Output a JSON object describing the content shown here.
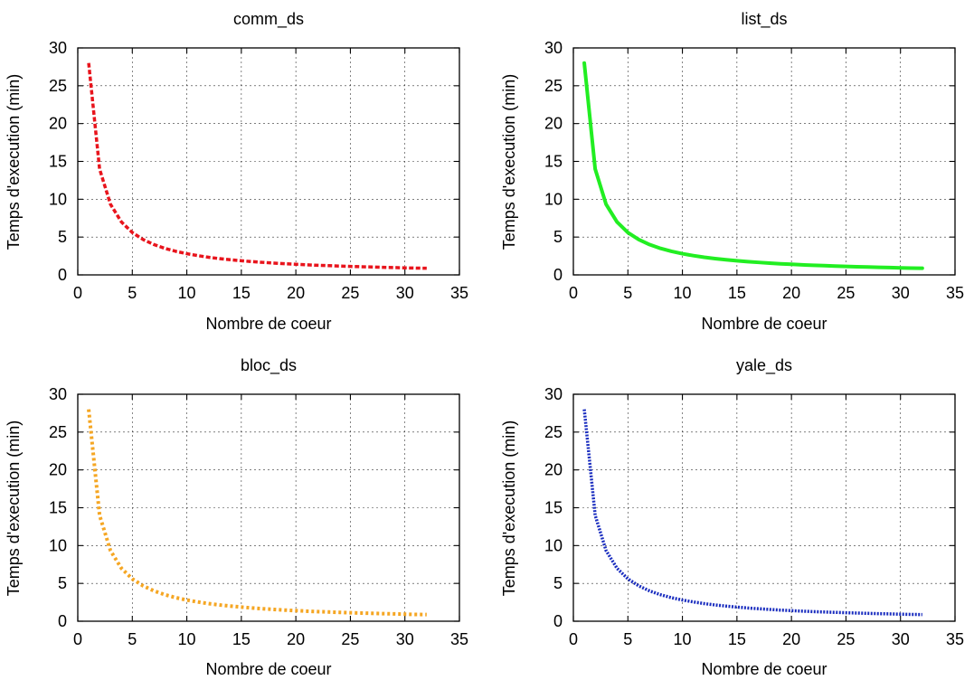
{
  "chart_data": [
    {
      "type": "line",
      "title": "comm_ds",
      "xlabel": "Nombre de coeur",
      "ylabel": "Temps d'execution (min)",
      "xlim": [
        0,
        35
      ],
      "ylim": [
        0,
        30
      ],
      "xticks": [
        0,
        5,
        10,
        15,
        20,
        25,
        30,
        35
      ],
      "yticks": [
        0,
        5,
        10,
        15,
        20,
        25,
        30
      ],
      "grid": true,
      "color": "#e8141c",
      "line_style": "dashed",
      "series": [
        {
          "x": [
            1,
            2,
            3,
            4,
            5,
            6,
            7,
            8,
            9,
            10,
            11,
            12,
            13,
            14,
            15,
            16,
            17,
            18,
            19,
            20,
            21,
            22,
            23,
            24,
            25,
            26,
            27,
            28,
            29,
            30,
            31,
            32
          ],
          "y": [
            28,
            14,
            9.33,
            7,
            5.6,
            4.67,
            4,
            3.5,
            3.11,
            2.8,
            2.55,
            2.33,
            2.15,
            2,
            1.87,
            1.75,
            1.65,
            1.56,
            1.47,
            1.4,
            1.33,
            1.27,
            1.22,
            1.17,
            1.12,
            1.08,
            1.04,
            1,
            0.97,
            0.93,
            0.9,
            0.88
          ]
        }
      ]
    },
    {
      "type": "line",
      "title": "list_ds",
      "xlabel": "Nombre de coeur",
      "ylabel": "Temps d'execution (min)",
      "xlim": [
        0,
        35
      ],
      "ylim": [
        0,
        30
      ],
      "xticks": [
        0,
        5,
        10,
        15,
        20,
        25,
        30,
        35
      ],
      "yticks": [
        0,
        5,
        10,
        15,
        20,
        25,
        30
      ],
      "grid": true,
      "color": "#22ee22",
      "line_style": "solid",
      "series": [
        {
          "x": [
            1,
            2,
            3,
            4,
            5,
            6,
            7,
            8,
            9,
            10,
            11,
            12,
            13,
            14,
            15,
            16,
            17,
            18,
            19,
            20,
            21,
            22,
            23,
            24,
            25,
            26,
            27,
            28,
            29,
            30,
            31,
            32
          ],
          "y": [
            28,
            14,
            9.33,
            7,
            5.6,
            4.67,
            4,
            3.5,
            3.11,
            2.8,
            2.55,
            2.33,
            2.15,
            2,
            1.87,
            1.75,
            1.65,
            1.56,
            1.47,
            1.4,
            1.33,
            1.27,
            1.22,
            1.17,
            1.12,
            1.08,
            1.04,
            1,
            0.97,
            0.93,
            0.9,
            0.88
          ]
        }
      ]
    },
    {
      "type": "line",
      "title": "bloc_ds",
      "xlabel": "Nombre de coeur",
      "ylabel": "Temps d'execution (min)",
      "xlim": [
        0,
        35
      ],
      "ylim": [
        0,
        30
      ],
      "xticks": [
        0,
        5,
        10,
        15,
        20,
        25,
        30,
        35
      ],
      "yticks": [
        0,
        5,
        10,
        15,
        20,
        25,
        30
      ],
      "grid": true,
      "color": "#f5a623",
      "line_style": "dotted",
      "series": [
        {
          "x": [
            1,
            2,
            3,
            4,
            5,
            6,
            7,
            8,
            9,
            10,
            11,
            12,
            13,
            14,
            15,
            16,
            17,
            18,
            19,
            20,
            21,
            22,
            23,
            24,
            25,
            26,
            27,
            28,
            29,
            30,
            31,
            32
          ],
          "y": [
            28,
            14,
            9.33,
            7,
            5.6,
            4.67,
            4,
            3.5,
            3.11,
            2.8,
            2.55,
            2.33,
            2.15,
            2,
            1.87,
            1.75,
            1.65,
            1.56,
            1.47,
            1.4,
            1.33,
            1.27,
            1.22,
            1.17,
            1.12,
            1.08,
            1.04,
            1,
            0.97,
            0.93,
            0.9,
            0.88
          ]
        }
      ]
    },
    {
      "type": "line",
      "title": "yale_ds",
      "xlabel": "Nombre de coeur",
      "ylabel": "Temps d'execution (min)",
      "xlim": [
        0,
        35
      ],
      "ylim": [
        0,
        30
      ],
      "xticks": [
        0,
        5,
        10,
        15,
        20,
        25,
        30,
        35
      ],
      "yticks": [
        0,
        5,
        10,
        15,
        20,
        25,
        30
      ],
      "grid": true,
      "color": "#1a2dbf",
      "line_style": "dense-dotted",
      "series": [
        {
          "x": [
            1,
            2,
            3,
            4,
            5,
            6,
            7,
            8,
            9,
            10,
            11,
            12,
            13,
            14,
            15,
            16,
            17,
            18,
            19,
            20,
            21,
            22,
            23,
            24,
            25,
            26,
            27,
            28,
            29,
            30,
            31,
            32
          ],
          "y": [
            28,
            14,
            9.33,
            7,
            5.6,
            4.67,
            4,
            3.5,
            3.11,
            2.8,
            2.55,
            2.33,
            2.15,
            2,
            1.87,
            1.75,
            1.65,
            1.56,
            1.47,
            1.4,
            1.33,
            1.27,
            1.22,
            1.17,
            1.12,
            1.08,
            1.04,
            1,
            0.97,
            0.93,
            0.9,
            0.88
          ]
        }
      ]
    }
  ]
}
